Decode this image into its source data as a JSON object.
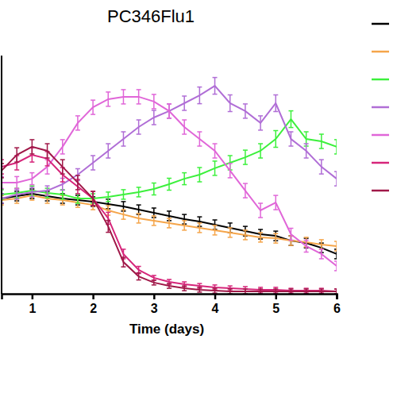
{
  "chart_data": {
    "type": "line",
    "title": "PC346Flu1",
    "x_label": "Time (days)",
    "x": [
      0.5,
      0.75,
      1,
      1.25,
      1.5,
      1.75,
      2,
      2.25,
      2.5,
      2.75,
      3,
      3.25,
      3.5,
      3.75,
      4,
      4.25,
      4.5,
      4.75,
      5,
      5.25,
      5.5,
      5.75,
      6
    ],
    "xlim": [
      0.5,
      6
    ],
    "xticks": [
      1,
      2,
      3,
      4,
      5,
      6
    ],
    "ylim": [
      0,
      100
    ],
    "tick_labels": "x",
    "legend": "right",
    "marker": "none",
    "series": [
      {
        "color": "#000000",
        "values": [
          40,
          41,
          42,
          41,
          40,
          39.3,
          38.7,
          37.7,
          36.7,
          35.3,
          34,
          32.7,
          31.3,
          30.3,
          29,
          27.7,
          26.3,
          25,
          24.3,
          22.3,
          21.3,
          19.3,
          16.7
        ],
        "errors": [
          2,
          2,
          2,
          2,
          2,
          2,
          2,
          2,
          2,
          2,
          2,
          2,
          2,
          2,
          2,
          2,
          2,
          2,
          2,
          2,
          2,
          2,
          2
        ]
      },
      {
        "color": "#f5a54a",
        "values": [
          39.3,
          40,
          41.3,
          40,
          39.3,
          38.3,
          37.3,
          35,
          33.3,
          31.7,
          30.7,
          29.7,
          28.7,
          27.7,
          26.7,
          25.7,
          24.7,
          23.7,
          23.3,
          22.3,
          21.7,
          20.7,
          20
        ],
        "errors": [
          2,
          2,
          2,
          2,
          2,
          2,
          2,
          2,
          2,
          2,
          2,
          2,
          2,
          2,
          2,
          2,
          2,
          2,
          2,
          2,
          2,
          2,
          2
        ]
      },
      {
        "color": "#3cf03c",
        "values": [
          41.7,
          42.3,
          43.3,
          42.3,
          41.7,
          40,
          40,
          40.7,
          41.7,
          42.7,
          44,
          46,
          48.3,
          50,
          52.7,
          55,
          57.3,
          60,
          65,
          73.3,
          65,
          64,
          61.7
        ],
        "errors": [
          2,
          2,
          2,
          2,
          2,
          2,
          2,
          2,
          2,
          2,
          2.5,
          2.5,
          2.5,
          3,
          3,
          3,
          3,
          3,
          3.5,
          3.5,
          3,
          3,
          3
        ]
      },
      {
        "color": "#b06ed6",
        "values": [
          40,
          41.7,
          42.7,
          43.3,
          46,
          50,
          55,
          60,
          65,
          70,
          74,
          76.7,
          80,
          83.3,
          87.3,
          80,
          76.7,
          71.7,
          80,
          65,
          60,
          53.3,
          48.3
        ],
        "errors": [
          2,
          2,
          2,
          2,
          2.5,
          2.5,
          3,
          3,
          3,
          3,
          3,
          3,
          3,
          3.5,
          3.5,
          3.5,
          3,
          3,
          3.5,
          3,
          3,
          3,
          3
        ]
      },
      {
        "color": "#e066d8",
        "values": [
          46.7,
          46.7,
          48.3,
          53.3,
          61.7,
          71.7,
          78.3,
          81.7,
          82.7,
          82.7,
          80.7,
          76.7,
          70,
          65,
          60,
          51.7,
          43.3,
          35,
          38.3,
          25,
          20,
          16.7,
          11.7
        ],
        "errors": [
          2.5,
          2.5,
          2.5,
          3,
          3,
          3,
          3,
          3,
          3,
          3,
          3,
          3,
          3,
          3,
          3,
          3,
          3,
          3,
          3,
          2.5,
          2.5,
          2,
          2
        ]
      },
      {
        "color": "#d6257a",
        "values": [
          53.3,
          55,
          58.3,
          56.7,
          50,
          45,
          40,
          31.7,
          16.7,
          10,
          6.7,
          5,
          4,
          3.3,
          2.7,
          2.3,
          2,
          1.7,
          1.7,
          1.3,
          1.3,
          1.3,
          1
        ],
        "errors": [
          3,
          3,
          3,
          3,
          3,
          3,
          3,
          2.5,
          2,
          1.5,
          1,
          1,
          1,
          1,
          1,
          1,
          1,
          1,
          1,
          1,
          1,
          1,
          1
        ]
      },
      {
        "color": "#a01848",
        "values": [
          51.7,
          58.3,
          61.7,
          60,
          53.3,
          46.7,
          40,
          28.3,
          13.3,
          7.3,
          4.7,
          3.3,
          2.3,
          1.7,
          1.3,
          1,
          1,
          1,
          1,
          1,
          1,
          1,
          1
        ],
        "errors": [
          3,
          3,
          3,
          3,
          3,
          3,
          3,
          2.5,
          2,
          1.5,
          1,
          1,
          1,
          1,
          1,
          1,
          1,
          1,
          1,
          1,
          1,
          1,
          1
        ]
      }
    ]
  }
}
